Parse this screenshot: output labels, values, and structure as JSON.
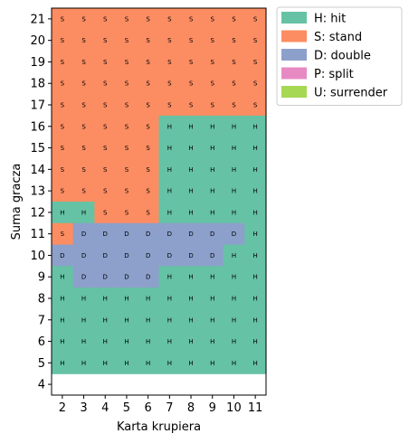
{
  "chart_data": {
    "type": "heatmap",
    "xlabel": "Karta krupiera",
    "ylabel": "Suma gracza",
    "x_ticks": [
      "2",
      "3",
      "4",
      "5",
      "6",
      "7",
      "8",
      "9",
      "10",
      "11"
    ],
    "y_ticks": [
      "21",
      "20",
      "19",
      "18",
      "17",
      "16",
      "15",
      "14",
      "13",
      "12",
      "11",
      "10",
      "9",
      "8",
      "7",
      "6",
      "5",
      "4"
    ],
    "legend": {
      "placement": "outside-top-right",
      "entries": [
        {
          "code": "H",
          "label": "H: hit",
          "color": "#66c2a5"
        },
        {
          "code": "S",
          "label": "S: stand",
          "color": "#fc8d62"
        },
        {
          "code": "D",
          "label": "D: double",
          "color": "#8da0cb"
        },
        {
          "code": "P",
          "label": "P: split",
          "color": "#e78ac3"
        },
        {
          "code": "U",
          "label": "U: surrender",
          "color": "#a6d854"
        }
      ]
    },
    "rows": [
      {
        "total": "21",
        "actions": [
          "S",
          "S",
          "S",
          "S",
          "S",
          "S",
          "S",
          "S",
          "S",
          "S"
        ]
      },
      {
        "total": "20",
        "actions": [
          "S",
          "S",
          "S",
          "S",
          "S",
          "S",
          "S",
          "S",
          "S",
          "S"
        ]
      },
      {
        "total": "19",
        "actions": [
          "S",
          "S",
          "S",
          "S",
          "S",
          "S",
          "S",
          "S",
          "S",
          "S"
        ]
      },
      {
        "total": "18",
        "actions": [
          "S",
          "S",
          "S",
          "S",
          "S",
          "S",
          "S",
          "S",
          "S",
          "S"
        ]
      },
      {
        "total": "17",
        "actions": [
          "S",
          "S",
          "S",
          "S",
          "S",
          "S",
          "S",
          "S",
          "S",
          "S"
        ]
      },
      {
        "total": "16",
        "actions": [
          "S",
          "S",
          "S",
          "S",
          "S",
          "H",
          "H",
          "H",
          "H",
          "H"
        ]
      },
      {
        "total": "15",
        "actions": [
          "S",
          "S",
          "S",
          "S",
          "S",
          "H",
          "H",
          "H",
          "H",
          "H"
        ]
      },
      {
        "total": "14",
        "actions": [
          "S",
          "S",
          "S",
          "S",
          "S",
          "H",
          "H",
          "H",
          "H",
          "H"
        ]
      },
      {
        "total": "13",
        "actions": [
          "S",
          "S",
          "S",
          "S",
          "S",
          "H",
          "H",
          "H",
          "H",
          "H"
        ]
      },
      {
        "total": "12",
        "actions": [
          "H",
          "H",
          "S",
          "S",
          "S",
          "H",
          "H",
          "H",
          "H",
          "H"
        ]
      },
      {
        "total": "11",
        "actions": [
          "S",
          "D",
          "D",
          "D",
          "D",
          "D",
          "D",
          "D",
          "D",
          "H"
        ]
      },
      {
        "total": "10",
        "actions": [
          "D",
          "D",
          "D",
          "D",
          "D",
          "D",
          "D",
          "D",
          "H",
          "H"
        ]
      },
      {
        "total": "9",
        "actions": [
          "H",
          "D",
          "D",
          "D",
          "D",
          "H",
          "H",
          "H",
          "H",
          "H"
        ]
      },
      {
        "total": "8",
        "actions": [
          "H",
          "H",
          "H",
          "H",
          "H",
          "H",
          "H",
          "H",
          "H",
          "H"
        ]
      },
      {
        "total": "7",
        "actions": [
          "H",
          "H",
          "H",
          "H",
          "H",
          "H",
          "H",
          "H",
          "H",
          "H"
        ]
      },
      {
        "total": "6",
        "actions": [
          "H",
          "H",
          "H",
          "H",
          "H",
          "H",
          "H",
          "H",
          "H",
          "H"
        ]
      },
      {
        "total": "5",
        "actions": [
          "H",
          "H",
          "H",
          "H",
          "H",
          "H",
          "H",
          "H",
          "H",
          "H"
        ]
      },
      {
        "total": "4",
        "actions": [
          "",
          "",
          "",
          "",
          "",
          "",
          "",
          "",
          "",
          ""
        ]
      }
    ]
  }
}
